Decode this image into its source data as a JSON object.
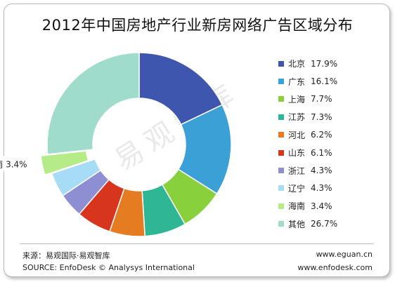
{
  "chart_data": {
    "type": "pie",
    "title": "2012年中国房地产行业新房网络广告区域分布",
    "slices": [
      {
        "label": "北京",
        "value": 17.9,
        "display": "17.9%",
        "color": "#3f56ae"
      },
      {
        "label": "广东",
        "value": 16.1,
        "display": "16.1%",
        "color": "#3aa0d6"
      },
      {
        "label": "上海",
        "value": 7.7,
        "display": "7.7%",
        "color": "#88d13c"
      },
      {
        "label": "江苏",
        "value": 7.3,
        "display": "7.3%",
        "color": "#2fb795"
      },
      {
        "label": "河北",
        "value": 6.2,
        "display": "6.2%",
        "color": "#e57c22"
      },
      {
        "label": "山东",
        "value": 6.1,
        "display": "6.1%",
        "color": "#d8351f"
      },
      {
        "label": "浙江",
        "value": 4.3,
        "display": "4.3%",
        "color": "#8e8fd3"
      },
      {
        "label": "辽宁",
        "value": 4.3,
        "display": "4.3%",
        "color": "#a6dcf5"
      },
      {
        "label": "海南",
        "value": 3.4,
        "display": "3.4%",
        "color": "#b6ec87"
      },
      {
        "label": "其他",
        "value": 26.7,
        "display": "26.7%",
        "color": "#9fdccb"
      }
    ],
    "exploded_label": "海南",
    "callout": {
      "label": "海南",
      "value": "3.4%"
    },
    "legend_position": "right"
  },
  "watermark": "易观智库",
  "footer": {
    "source_cn": "来源：易观国际·易观智库",
    "source_en": "SOURCE: EnfoDesk © Analysys International",
    "website1": "www.eguan.cn",
    "website2": "www.enfodesk.com"
  }
}
